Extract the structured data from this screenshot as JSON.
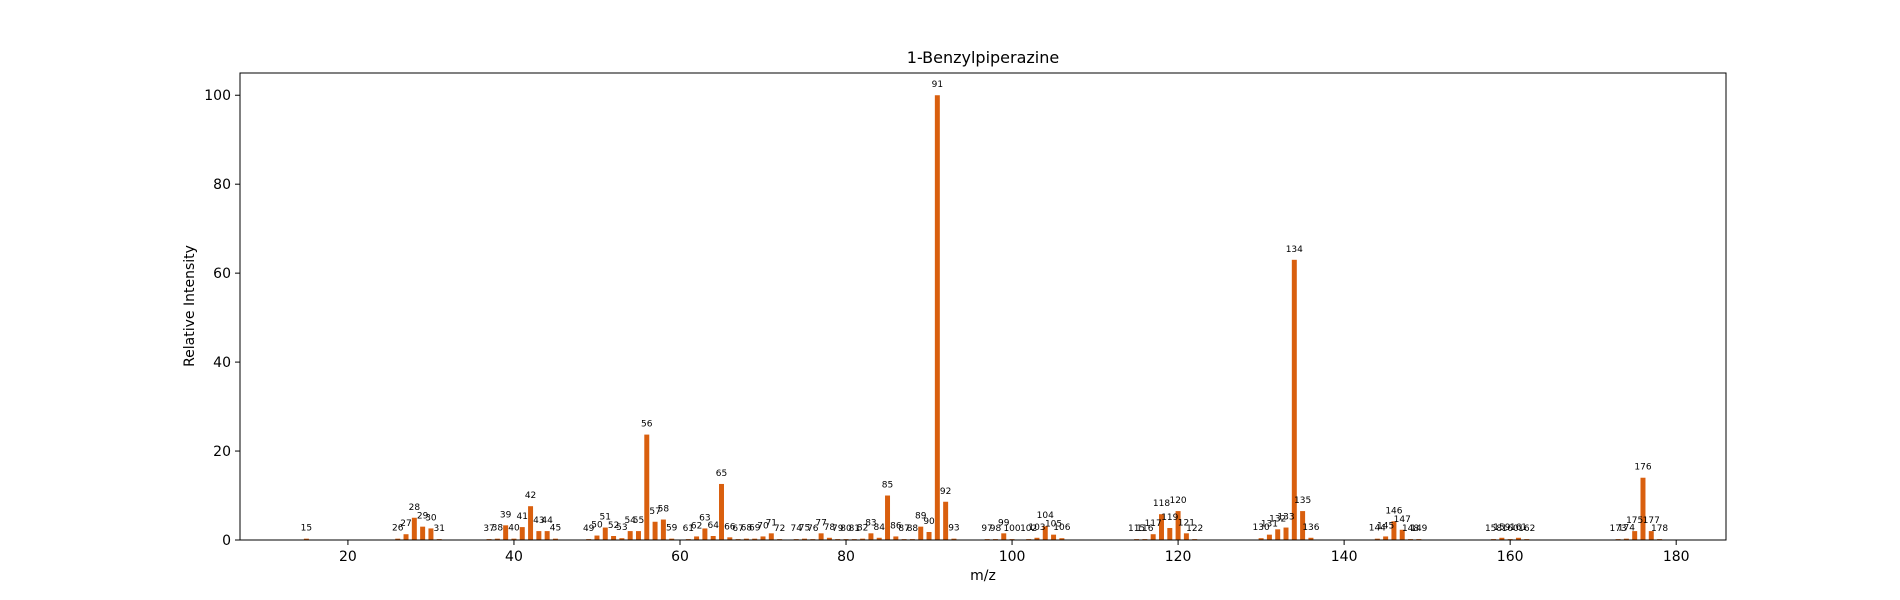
{
  "chart_data": {
    "type": "bar",
    "title": "1-Benzylpiperazine",
    "xlabel": "m/z",
    "ylabel": "Relative Intensity",
    "xlim": [
      7,
      186
    ],
    "ylim": [
      0,
      105
    ],
    "xticks": [
      20,
      40,
      60,
      80,
      100,
      120,
      140,
      160,
      180
    ],
    "yticks": [
      0,
      20,
      40,
      60,
      80,
      100
    ],
    "bar_color": "#d95f0e",
    "grid": false,
    "peaks": [
      {
        "mz": 15,
        "intensity": 0.3
      },
      {
        "mz": 26,
        "intensity": 0.3
      },
      {
        "mz": 27,
        "intensity": 1.3
      },
      {
        "mz": 28,
        "intensity": 5.0
      },
      {
        "mz": 29,
        "intensity": 3.0
      },
      {
        "mz": 30,
        "intensity": 2.6
      },
      {
        "mz": 31,
        "intensity": 0.2
      },
      {
        "mz": 37,
        "intensity": 0.2
      },
      {
        "mz": 38,
        "intensity": 0.3
      },
      {
        "mz": 39,
        "intensity": 3.3
      },
      {
        "mz": 40,
        "intensity": 0.3
      },
      {
        "mz": 41,
        "intensity": 2.9
      },
      {
        "mz": 42,
        "intensity": 7.6
      },
      {
        "mz": 43,
        "intensity": 2.0
      },
      {
        "mz": 44,
        "intensity": 2.0
      },
      {
        "mz": 45,
        "intensity": 0.3
      },
      {
        "mz": 49,
        "intensity": 0.2
      },
      {
        "mz": 50,
        "intensity": 1.0
      },
      {
        "mz": 51,
        "intensity": 2.8
      },
      {
        "mz": 52,
        "intensity": 0.9
      },
      {
        "mz": 53,
        "intensity": 0.4
      },
      {
        "mz": 54,
        "intensity": 2.0
      },
      {
        "mz": 55,
        "intensity": 2.0
      },
      {
        "mz": 56,
        "intensity": 23.7
      },
      {
        "mz": 57,
        "intensity": 4.1
      },
      {
        "mz": 58,
        "intensity": 4.6
      },
      {
        "mz": 59,
        "intensity": 0.3
      },
      {
        "mz": 61,
        "intensity": 0.2
      },
      {
        "mz": 62,
        "intensity": 0.8
      },
      {
        "mz": 63,
        "intensity": 2.6
      },
      {
        "mz": 64,
        "intensity": 0.9
      },
      {
        "mz": 65,
        "intensity": 12.6
      },
      {
        "mz": 66,
        "intensity": 0.6
      },
      {
        "mz": 67,
        "intensity": 0.2
      },
      {
        "mz": 68,
        "intensity": 0.3
      },
      {
        "mz": 69,
        "intensity": 0.3
      },
      {
        "mz": 70,
        "intensity": 0.8
      },
      {
        "mz": 71,
        "intensity": 1.5
      },
      {
        "mz": 72,
        "intensity": 0.2
      },
      {
        "mz": 74,
        "intensity": 0.2
      },
      {
        "mz": 75,
        "intensity": 0.3
      },
      {
        "mz": 76,
        "intensity": 0.2
      },
      {
        "mz": 77,
        "intensity": 1.5
      },
      {
        "mz": 78,
        "intensity": 0.5
      },
      {
        "mz": 79,
        "intensity": 0.2
      },
      {
        "mz": 80,
        "intensity": 0.2
      },
      {
        "mz": 81,
        "intensity": 0.2
      },
      {
        "mz": 82,
        "intensity": 0.3
      },
      {
        "mz": 83,
        "intensity": 1.5
      },
      {
        "mz": 84,
        "intensity": 0.5
      },
      {
        "mz": 85,
        "intensity": 10.0
      },
      {
        "mz": 86,
        "intensity": 0.8
      },
      {
        "mz": 87,
        "intensity": 0.2
      },
      {
        "mz": 88,
        "intensity": 0.2
      },
      {
        "mz": 89,
        "intensity": 3.0
      },
      {
        "mz": 90,
        "intensity": 1.8
      },
      {
        "mz": 91,
        "intensity": 100.0
      },
      {
        "mz": 92,
        "intensity": 8.6
      },
      {
        "mz": 93,
        "intensity": 0.3
      },
      {
        "mz": 97,
        "intensity": 0.2
      },
      {
        "mz": 98,
        "intensity": 0.2
      },
      {
        "mz": 99,
        "intensity": 1.5
      },
      {
        "mz": 100,
        "intensity": 0.2
      },
      {
        "mz": 102,
        "intensity": 0.2
      },
      {
        "mz": 103,
        "intensity": 0.5
      },
      {
        "mz": 104,
        "intensity": 3.1
      },
      {
        "mz": 105,
        "intensity": 1.2
      },
      {
        "mz": 106,
        "intensity": 0.4
      },
      {
        "mz": 115,
        "intensity": 0.2
      },
      {
        "mz": 116,
        "intensity": 0.2
      },
      {
        "mz": 117,
        "intensity": 1.3
      },
      {
        "mz": 118,
        "intensity": 5.8
      },
      {
        "mz": 119,
        "intensity": 2.7
      },
      {
        "mz": 120,
        "intensity": 6.5
      },
      {
        "mz": 121,
        "intensity": 1.5
      },
      {
        "mz": 122,
        "intensity": 0.2
      },
      {
        "mz": 130,
        "intensity": 0.4
      },
      {
        "mz": 131,
        "intensity": 1.2
      },
      {
        "mz": 132,
        "intensity": 2.4
      },
      {
        "mz": 133,
        "intensity": 2.8
      },
      {
        "mz": 134,
        "intensity": 63.0
      },
      {
        "mz": 135,
        "intensity": 6.5
      },
      {
        "mz": 136,
        "intensity": 0.5
      },
      {
        "mz": 144,
        "intensity": 0.3
      },
      {
        "mz": 145,
        "intensity": 0.8
      },
      {
        "mz": 146,
        "intensity": 4.2
      },
      {
        "mz": 147,
        "intensity": 2.3
      },
      {
        "mz": 148,
        "intensity": 0.2
      },
      {
        "mz": 149,
        "intensity": 0.2
      },
      {
        "mz": 158,
        "intensity": 0.2
      },
      {
        "mz": 159,
        "intensity": 0.5
      },
      {
        "mz": 160,
        "intensity": 0.2
      },
      {
        "mz": 161,
        "intensity": 0.5
      },
      {
        "mz": 162,
        "intensity": 0.2
      },
      {
        "mz": 173,
        "intensity": 0.2
      },
      {
        "mz": 174,
        "intensity": 0.3
      },
      {
        "mz": 175,
        "intensity": 2.0
      },
      {
        "mz": 176,
        "intensity": 14.0
      },
      {
        "mz": 177,
        "intensity": 2.0
      },
      {
        "mz": 178,
        "intensity": 0.2
      }
    ]
  }
}
